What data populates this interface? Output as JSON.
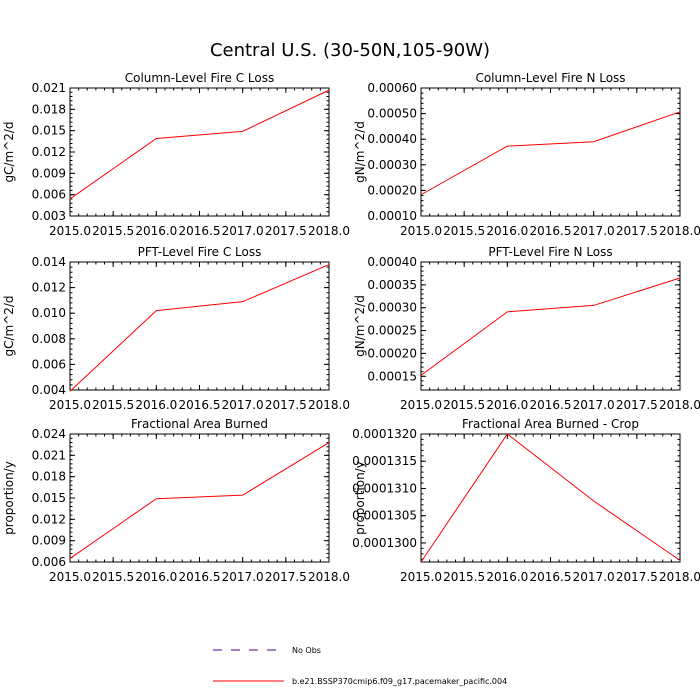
{
  "figure": {
    "title": "Central U.S. (30-50N,105-90W)"
  },
  "legend": {
    "entries": [
      {
        "label": "No Obs",
        "color": "#4b0082",
        "dash": true
      },
      {
        "label": "b.e21.BSSP370cmip6.f09_g17.pacemaker_pacific.004",
        "color": "#ff0000",
        "dash": false
      }
    ]
  },
  "chart_data": [
    {
      "type": "line",
      "title": "Column-Level Fire C Loss",
      "ylabel": "gC/m^2/d",
      "xlim": [
        2015.0,
        2018.0
      ],
      "ylim": [
        0.003,
        0.021
      ],
      "xticks": [
        "2015.0",
        "2015.5",
        "2016.0",
        "2016.5",
        "2017.0",
        "2017.5",
        "2018.0"
      ],
      "yticks": [
        "0.003",
        "0.006",
        "0.009",
        "0.012",
        "0.015",
        "0.018",
        "0.021"
      ],
      "x": [
        2015.0,
        2016.0,
        2017.0,
        2018.0
      ],
      "series": [
        {
          "values": [
            0.0054,
            0.0139,
            0.0149,
            0.0207
          ],
          "color": "#ff0000"
        }
      ]
    },
    {
      "type": "line",
      "title": "Column-Level Fire N Loss",
      "ylabel": "gN/m^2/d",
      "xlim": [
        2015.0,
        2018.0
      ],
      "ylim": [
        0.0001,
        0.0006
      ],
      "xticks": [
        "2015.0",
        "2015.5",
        "2016.0",
        "2016.5",
        "2017.0",
        "2017.5",
        "2018.0"
      ],
      "yticks": [
        "0.00010",
        "0.00020",
        "0.00030",
        "0.00040",
        "0.00050",
        "0.00060"
      ],
      "x": [
        2015.0,
        2016.0,
        2017.0,
        2018.0
      ],
      "series": [
        {
          "values": [
            0.000183,
            0.000373,
            0.00039,
            0.000507
          ],
          "color": "#ff0000"
        }
      ]
    },
    {
      "type": "line",
      "title": "PFT-Level Fire C Loss",
      "ylabel": "gC/m^2/d",
      "xlim": [
        2015.0,
        2018.0
      ],
      "ylim": [
        0.004,
        0.014
      ],
      "xticks": [
        "2015.0",
        "2015.5",
        "2016.0",
        "2016.5",
        "2017.0",
        "2017.5",
        "2018.0"
      ],
      "yticks": [
        "0.004",
        "0.006",
        "0.008",
        "0.010",
        "0.012",
        "0.014"
      ],
      "x": [
        2015.0,
        2016.0,
        2017.0,
        2018.0
      ],
      "series": [
        {
          "values": [
            0.0039,
            0.0102,
            0.0109,
            0.0138
          ],
          "color": "#ff0000"
        }
      ]
    },
    {
      "type": "line",
      "title": "PFT-Level Fire N Loss",
      "ylabel": "gN/m^2/d",
      "xlim": [
        2015.0,
        2018.0
      ],
      "ylim": [
        0.00012,
        0.0004
      ],
      "xticks": [
        "2015.0",
        "2015.5",
        "2016.0",
        "2016.5",
        "2017.0",
        "2017.5",
        "2018.0"
      ],
      "yticks": [
        "0.00015",
        "0.00020",
        "0.00025",
        "0.00030",
        "0.00035",
        "0.00040"
      ],
      "x": [
        2015.0,
        2016.0,
        2017.0,
        2018.0
      ],
      "series": [
        {
          "values": [
            0.000152,
            0.000291,
            0.000305,
            0.000365
          ],
          "color": "#ff0000"
        }
      ]
    },
    {
      "type": "line",
      "title": "Fractional Area Burned",
      "ylabel": "proportion/y",
      "xlim": [
        2015.0,
        2018.0
      ],
      "ylim": [
        0.006,
        0.024
      ],
      "xticks": [
        "2015.0",
        "2015.5",
        "2016.0",
        "2016.5",
        "2017.0",
        "2017.5",
        "2018.0"
      ],
      "yticks": [
        "0.006",
        "0.009",
        "0.012",
        "0.015",
        "0.018",
        "0.021",
        "0.024"
      ],
      "x": [
        2015.0,
        2016.0,
        2017.0,
        2018.0
      ],
      "series": [
        {
          "values": [
            0.0065,
            0.0149,
            0.0154,
            0.0228
          ],
          "color": "#ff0000"
        }
      ]
    },
    {
      "type": "line",
      "title": "Fractional Area Burned - Crop",
      "ylabel": "proportion/y",
      "xlim": [
        2015.0,
        2018.0
      ],
      "ylim": [
        0.00012965,
        0.000132
      ],
      "xticks": [
        "2015.0",
        "2015.5",
        "2016.0",
        "2016.5",
        "2017.0",
        "2017.5",
        "2018.0"
      ],
      "yticks": [
        "0.0001300",
        "0.0001305",
        "0.0001310",
        "0.0001315",
        "0.0001320"
      ],
      "x": [
        2015.0,
        2016.0,
        2017.0,
        2018.0
      ],
      "series": [
        {
          "values": [
            0.00012965,
            0.000132,
            0.00013077,
            0.00012968
          ],
          "color": "#ff0000"
        }
      ]
    }
  ]
}
